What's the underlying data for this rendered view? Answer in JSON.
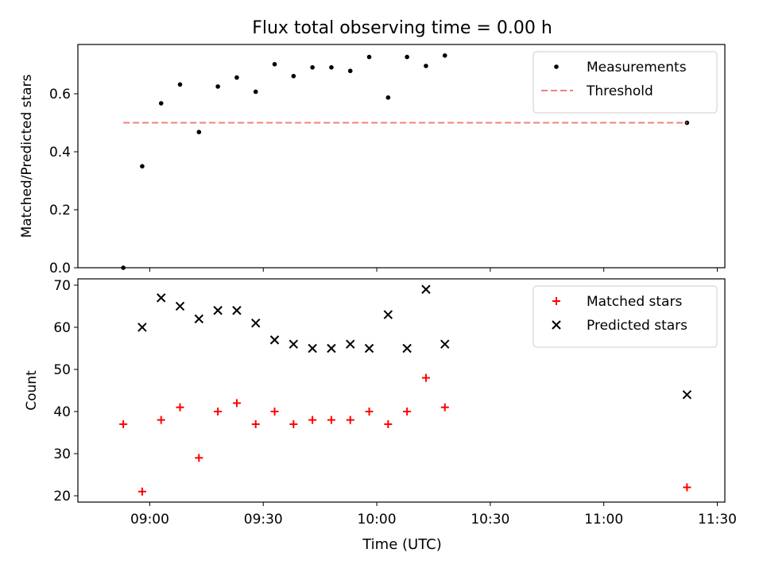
{
  "figure": {
    "title": "Flux total observing time = 0.00 h",
    "xlabel": "Time (UTC)"
  },
  "chart_data": [
    {
      "type": "scatter",
      "ylabel": "Matched/Predicted stars",
      "xlim": [
        "08:41",
        "11:32"
      ],
      "ylim": [
        0.0,
        0.77
      ],
      "yticks": [
        0.0,
        0.2,
        0.4,
        0.6
      ],
      "xticks": [
        "09:00",
        "09:30",
        "10:00",
        "10:30",
        "11:00",
        "11:30"
      ],
      "show_xticklabels": false,
      "grid": false,
      "legend": "top-right",
      "x": [
        "08:53",
        "08:58",
        "09:03",
        "09:08",
        "09:13",
        "09:18",
        "09:23",
        "09:28",
        "09:33",
        "09:38",
        "09:43",
        "09:48",
        "09:53",
        "09:58",
        "10:03",
        "10:08",
        "10:13",
        "10:18",
        "10:23",
        "11:22"
      ],
      "series": [
        {
          "name": "Measurements",
          "kind": "scatter",
          "color": "#000000",
          "values": [
            0.0,
            0.35,
            0.567,
            0.632,
            0.468,
            0.625,
            0.656,
            0.607,
            0.702,
            0.661,
            0.691,
            0.691,
            0.679,
            0.727,
            0.587,
            0.727,
            0.696,
            0.732,
            null,
            0.5
          ]
        },
        {
          "name": "Threshold",
          "kind": "dashed-line",
          "color": "#f08080",
          "x": [
            "08:53",
            "11:22"
          ],
          "values": [
            0.5,
            0.5
          ]
        }
      ]
    },
    {
      "type": "scatter",
      "ylabel": "Count",
      "xlim": [
        "08:41",
        "11:32"
      ],
      "ylim": [
        18.5,
        71.5
      ],
      "yticks": [
        20,
        30,
        40,
        50,
        60,
        70
      ],
      "xticks": [
        "09:00",
        "09:30",
        "10:00",
        "10:30",
        "11:00",
        "11:30"
      ],
      "grid": false,
      "legend": "top-right",
      "x": [
        "08:53",
        "08:58",
        "09:03",
        "09:08",
        "09:13",
        "09:18",
        "09:23",
        "09:28",
        "09:33",
        "09:38",
        "09:43",
        "09:48",
        "09:53",
        "09:58",
        "10:03",
        "10:08",
        "10:13",
        "10:18",
        "10:23",
        "11:22"
      ],
      "series": [
        {
          "name": "Matched stars",
          "marker": "plus",
          "color": "#ff0000",
          "values": [
            37,
            21,
            38,
            41,
            29,
            40,
            42,
            37,
            40,
            37,
            38,
            38,
            38,
            40,
            37,
            40,
            48,
            41,
            null,
            22
          ]
        },
        {
          "name": "Predicted stars",
          "marker": "x",
          "color": "#000000",
          "values": [
            null,
            60,
            67,
            65,
            62,
            64,
            64,
            61,
            57,
            56,
            55,
            55,
            56,
            55,
            63,
            55,
            69,
            56,
            null,
            44
          ]
        }
      ]
    }
  ]
}
